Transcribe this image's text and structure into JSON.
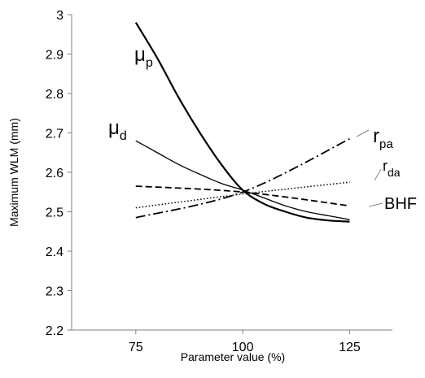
{
  "chart_data": {
    "type": "line",
    "xlabel": "Parameter value  (%)",
    "ylabel": "Maximum WLM (mm)",
    "xlim": [
      60,
      135
    ],
    "ylim": [
      2.2,
      3.0
    ],
    "x_ticks": [
      "75",
      "100",
      "125"
    ],
    "x_tick_values": [
      75,
      100,
      125
    ],
    "y_ticks": [
      "2.2",
      "2.3",
      "2.4",
      "2.5",
      "2.6",
      "2.7",
      "2.8",
      "2.9",
      "3"
    ],
    "y_tick_values": [
      2.2,
      2.3,
      2.4,
      2.5,
      2.6,
      2.7,
      2.8,
      2.9,
      3.0
    ],
    "grid": false,
    "legend": "none",
    "series": [
      {
        "key": "mu_p",
        "label_main": "μ",
        "label_sub": "p",
        "style": "solid-thick",
        "x": [
          75,
          80,
          85,
          90,
          95,
          100,
          105,
          110,
          115,
          120,
          125
        ],
        "y": [
          2.98,
          2.89,
          2.79,
          2.7,
          2.62,
          2.555,
          2.52,
          2.5,
          2.485,
          2.478,
          2.475
        ]
      },
      {
        "key": "mu_d",
        "label_main": "μ",
        "label_sub": "d",
        "style": "solid-thin",
        "x": [
          75,
          80,
          85,
          90,
          95,
          100,
          105,
          110,
          115,
          120,
          125
        ],
        "y": [
          2.68,
          2.65,
          2.62,
          2.595,
          2.572,
          2.555,
          2.535,
          2.515,
          2.5,
          2.49,
          2.48
        ]
      },
      {
        "key": "r_pa",
        "label_main": "r",
        "label_sub": "pa",
        "style": "dash-dot",
        "x": [
          75,
          100,
          125
        ],
        "y": [
          2.485,
          2.55,
          2.685
        ]
      },
      {
        "key": "r_da",
        "label_main": "r",
        "label_sub": "da",
        "style": "dotted",
        "x": [
          75,
          100,
          125
        ],
        "y": [
          2.51,
          2.545,
          2.575
        ]
      },
      {
        "key": "bhf",
        "label_main": "BHF",
        "label_sub": "",
        "style": "dashed",
        "x": [
          75,
          100,
          125
        ],
        "y": [
          2.565,
          2.55,
          2.515
        ]
      }
    ]
  }
}
